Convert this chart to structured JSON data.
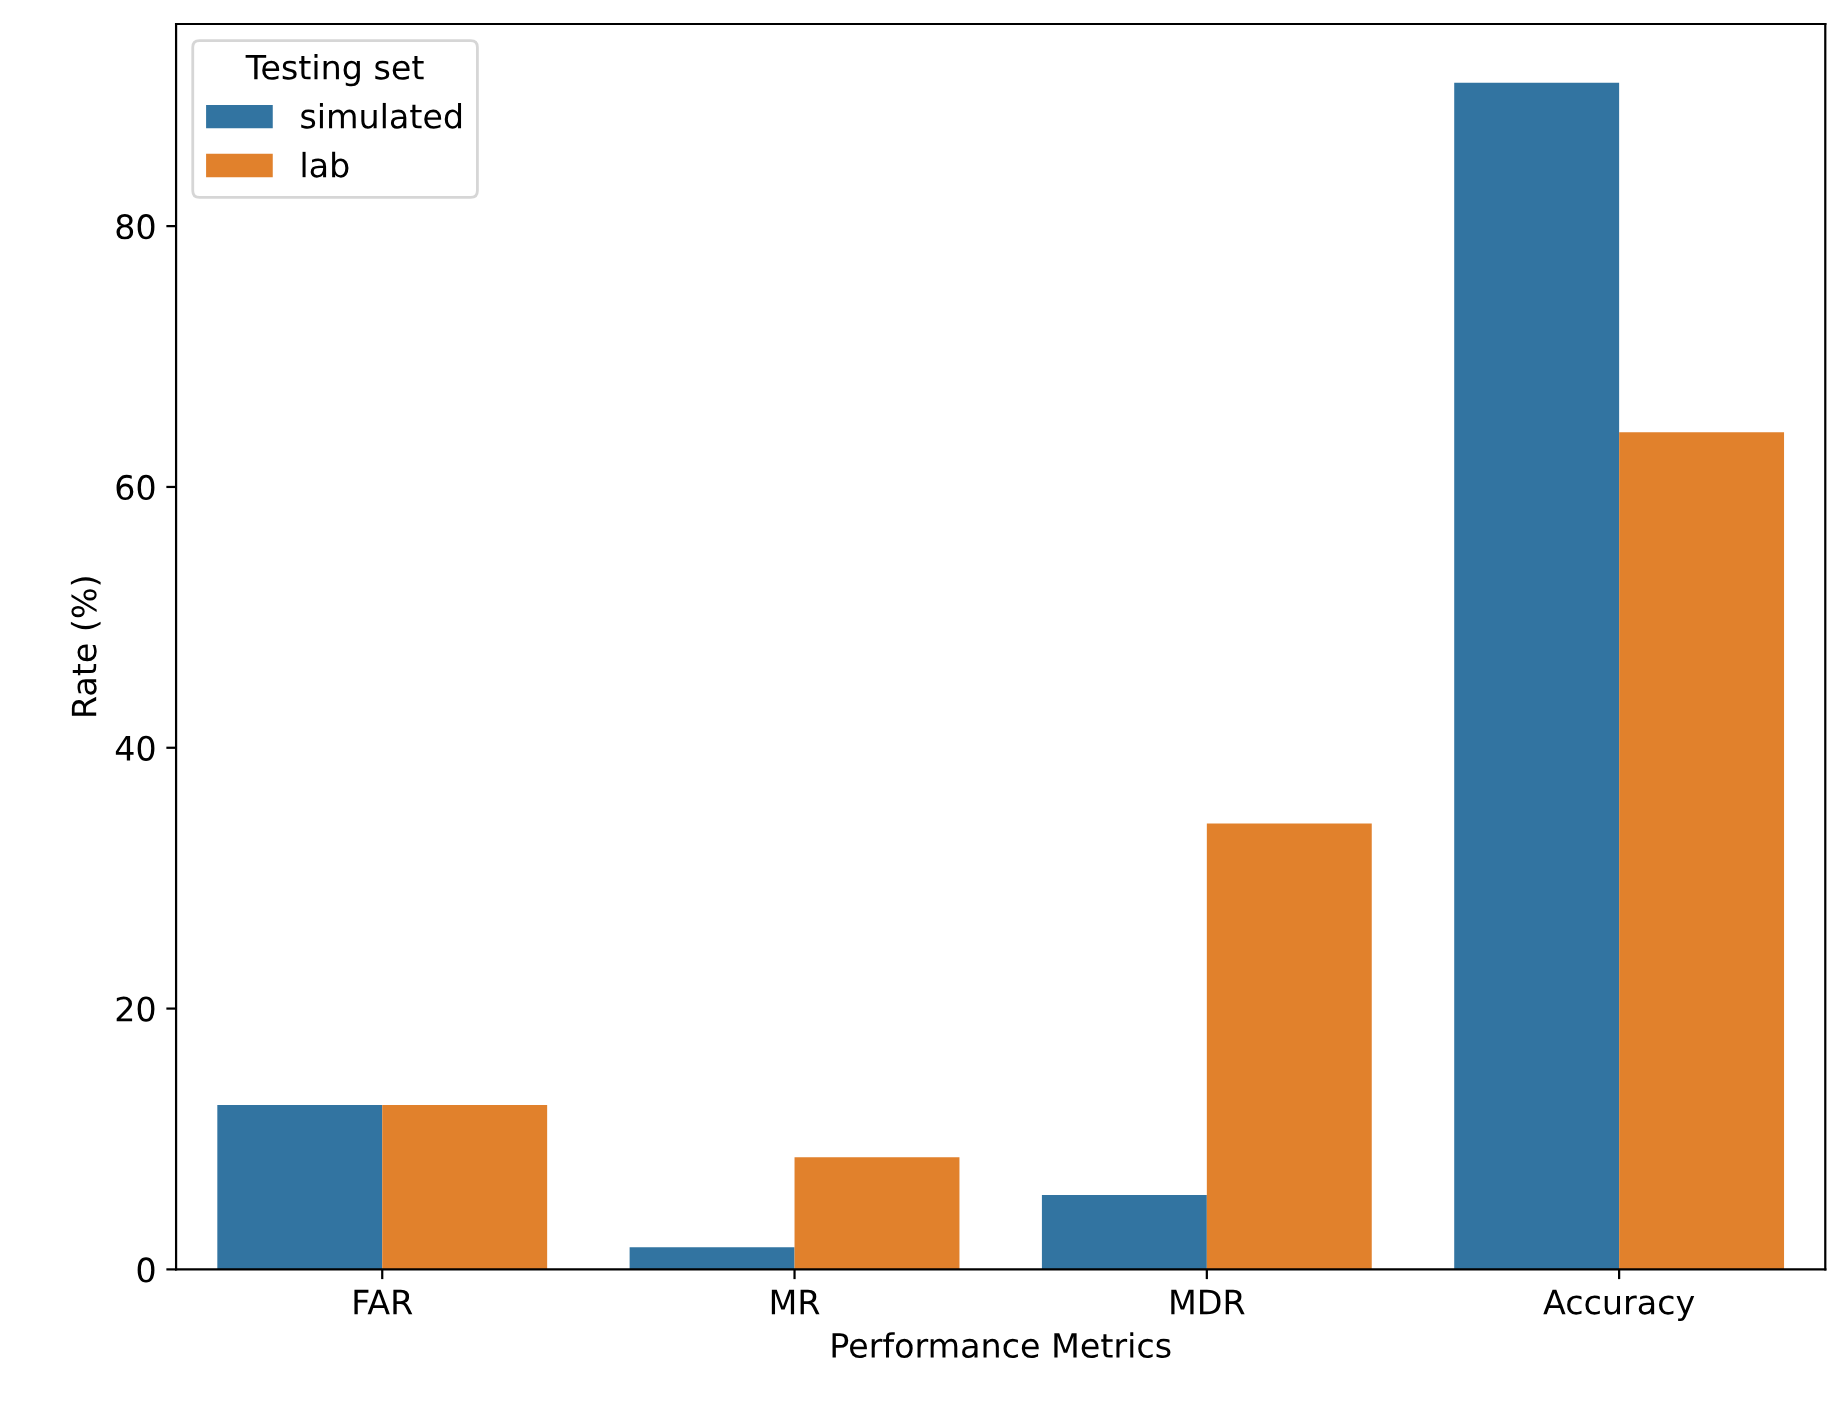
{
  "chart_data": {
    "type": "bar",
    "xlabel": "Performance Metrics",
    "ylabel": "Rate (%)",
    "legend_title": "Testing set",
    "categories": [
      "FAR",
      "MR",
      "MDR",
      "Accuracy"
    ],
    "series": [
      {
        "name": "simulated",
        "color": "#3274a1",
        "values": [
          12.6,
          1.7,
          5.7,
          91.0
        ]
      },
      {
        "name": "lab",
        "color": "#e1812c",
        "values": [
          12.6,
          8.6,
          34.2,
          64.2
        ]
      }
    ],
    "ylim": [
      0,
      95.5
    ],
    "yticks": [
      0,
      20,
      40,
      60,
      80
    ],
    "grid": false,
    "legend": "top left"
  }
}
